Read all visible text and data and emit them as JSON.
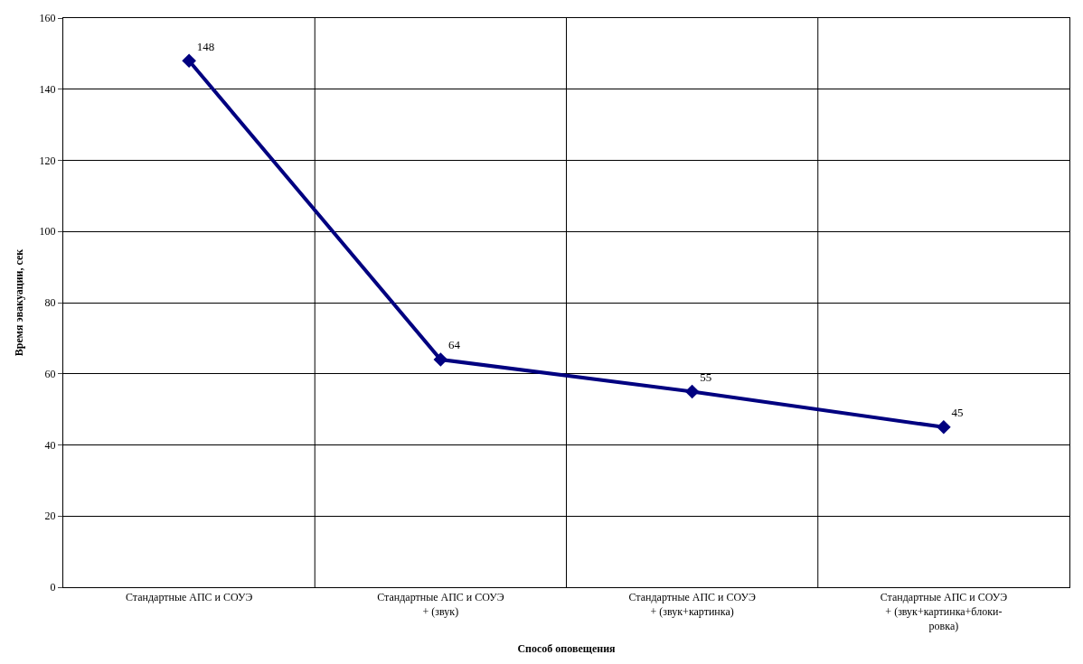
{
  "chart_data": {
    "type": "line",
    "xlabel": "Способ оповещения",
    "ylabel": "Время эвакуации, сек",
    "categories": [
      "Стандартные АПС и СОУЭ",
      "Стандартные АПС и СОУЭ\n+ (звук)",
      "Стандартные АПС и СОУЭ\n+ (звук+картинка)",
      "Стандартные АПС и СОУЭ\n+ (звук+картинка+блоки-\nровка)"
    ],
    "series": [
      {
        "color": "#000080",
        "values": [
          148,
          64,
          55,
          45
        ]
      }
    ],
    "ylim": [
      0,
      160
    ],
    "yticks": [
      0,
      20,
      40,
      60,
      80,
      100,
      120,
      140,
      160
    ],
    "grid": true,
    "marker": "diamond",
    "line_style": "solid",
    "data_labels": true,
    "legend": false
  }
}
